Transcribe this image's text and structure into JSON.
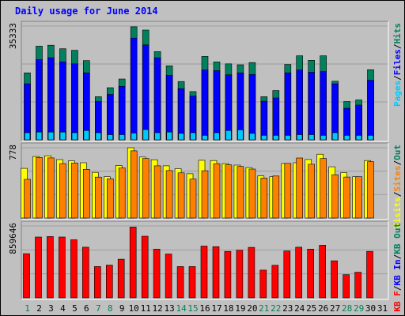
{
  "title": "Daily usage for June 2014",
  "colors": {
    "hits": "#00805c",
    "files": "#0000ff",
    "pages": "#00c8ff",
    "visits": "#ffff00",
    "sites": "#ff8000",
    "kbin": "#ff0000",
    "weekday_label": "#000000",
    "weekend_label": "#00805c",
    "background": "#c0c0c0"
  },
  "chart_data": [
    {
      "type": "bar",
      "title": "Daily usage for June 2014",
      "categories": [
        "1",
        "2",
        "3",
        "4",
        "5",
        "6",
        "7",
        "8",
        "9",
        "10",
        "11",
        "12",
        "13",
        "14",
        "15",
        "16",
        "17",
        "18",
        "19",
        "20",
        "21",
        "22",
        "23",
        "24",
        "25",
        "26",
        "27",
        "28",
        "29",
        "30",
        "31"
      ],
      "weekend_days": [
        "1",
        "7",
        "8",
        "14",
        "15",
        "21",
        "22",
        "28",
        "29"
      ],
      "ymax_label": "35333",
      "ylim": [
        0,
        35333
      ],
      "right_legend": [
        "Pages",
        "/",
        "Files",
        "/",
        "Hits"
      ],
      "series": [
        {
          "name": "Hits",
          "values": [
            20800,
            29100,
            29400,
            28300,
            27800,
            24600,
            13400,
            16200,
            18900,
            35100,
            34100,
            27400,
            23000,
            18100,
            15000,
            25900,
            24200,
            23600,
            23300,
            24000,
            13400,
            15300,
            23400,
            26100,
            24700,
            26100,
            18200,
            11900,
            12400,
            21800,
            0
          ]
        },
        {
          "name": "Files",
          "values": [
            17400,
            24900,
            25500,
            24200,
            23600,
            20800,
            11900,
            14100,
            16600,
            31600,
            29500,
            25500,
            20000,
            15900,
            13600,
            21700,
            21500,
            20200,
            20800,
            20300,
            12000,
            13000,
            20800,
            21700,
            21000,
            21200,
            17400,
            9800,
            10800,
            18500,
            0
          ]
        },
        {
          "name": "Pages",
          "values": [
            2200,
            2400,
            2400,
            2400,
            2200,
            2900,
            2200,
            1600,
            1600,
            2100,
            3200,
            2200,
            2400,
            2000,
            2200,
            1400,
            2200,
            2900,
            3100,
            2000,
            1400,
            1400,
            1400,
            1600,
            1600,
            1400,
            2200,
            1400,
            1400,
            1400,
            0
          ]
        }
      ]
    },
    {
      "type": "bar",
      "categories": [
        "1",
        "2",
        "3",
        "4",
        "5",
        "6",
        "7",
        "8",
        "9",
        "10",
        "11",
        "12",
        "13",
        "14",
        "15",
        "16",
        "17",
        "18",
        "19",
        "20",
        "21",
        "22",
        "23",
        "24",
        "25",
        "26",
        "27",
        "28",
        "29",
        "30",
        "31"
      ],
      "ymax_label": "778",
      "ylim": [
        0,
        778
      ],
      "right_legend": [
        "Visits",
        "/",
        "Sites",
        "/",
        "Out"
      ],
      "series": [
        {
          "name": "Visits",
          "values": [
            550,
            681,
            689,
            647,
            633,
            612,
            505,
            458,
            581,
            778,
            675,
            645,
            578,
            546,
            490,
            639,
            636,
            602,
            586,
            559,
            466,
            457,
            604,
            612,
            648,
            706,
            567,
            503,
            457,
            636,
            0
          ]
        },
        {
          "name": "Sites",
          "values": [
            428,
            670,
            665,
            602,
            608,
            539,
            453,
            434,
            554,
            744,
            659,
            578,
            525,
            500,
            431,
            524,
            601,
            589,
            571,
            542,
            442,
            465,
            605,
            664,
            595,
            658,
            480,
            454,
            457,
            623,
            0
          ]
        }
      ]
    },
    {
      "type": "bar",
      "categories": [
        "1",
        "2",
        "3",
        "4",
        "5",
        "6",
        "7",
        "8",
        "9",
        "10",
        "11",
        "12",
        "13",
        "14",
        "15",
        "16",
        "17",
        "18",
        "19",
        "20",
        "21",
        "22",
        "23",
        "24",
        "25",
        "26",
        "27",
        "28",
        "29",
        "30",
        "31"
      ],
      "ymax_label": "859646",
      "ylim": [
        0,
        859646
      ],
      "right_legend": [
        "KB F",
        "/",
        "KB In",
        "/",
        "KB Out"
      ],
      "series": [
        {
          "name": "KB F",
          "values": [
            528000,
            727000,
            733000,
            727000,
            694000,
            606000,
            374000,
            391000,
            462000,
            846000,
            737000,
            582000,
            524000,
            374000,
            374000,
            619000,
            612000,
            555000,
            570000,
            604000,
            332000,
            389000,
            560000,
            606000,
            583000,
            629000,
            443000,
            277000,
            306000,
            555000,
            0
          ]
        }
      ]
    }
  ]
}
